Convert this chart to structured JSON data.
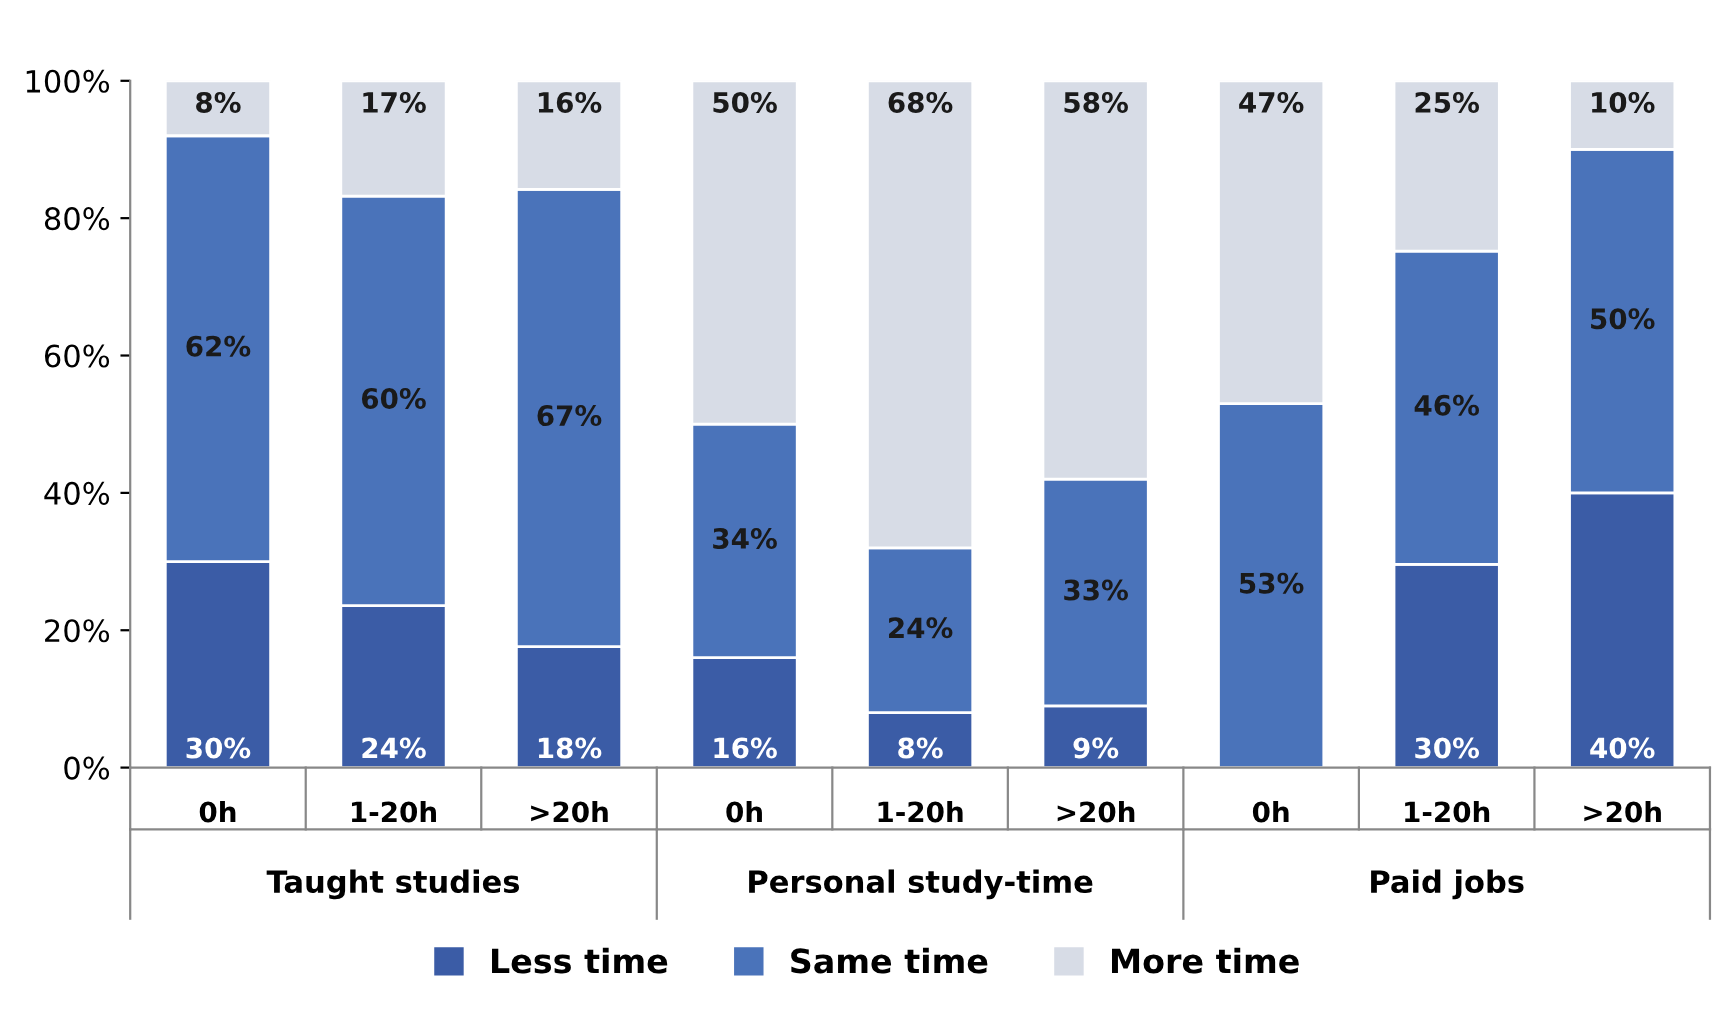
{
  "chart_data": {
    "type": "bar",
    "stacked": true,
    "categories": [
      "0h",
      "1-20h",
      ">20h",
      "0h",
      "1-20h",
      ">20h",
      "0h",
      "1-20h",
      ">20h"
    ],
    "series": [
      {
        "name": "Less time",
        "color": "#3b5ca6",
        "values": [
          30,
          23.6,
          17.6,
          16,
          8,
          9,
          0,
          29.6,
          40
        ],
        "value_labels": [
          "30%",
          "24%",
          "18%",
          "16%",
          "8%",
          "9%",
          null,
          "30%",
          "40%"
        ]
      },
      {
        "name": "Same time",
        "color": "#4a73ba",
        "values": [
          62,
          59.6,
          66.6,
          34,
          24,
          33,
          53,
          45.6,
          50
        ],
        "value_labels": [
          "62%",
          "60%",
          "67%",
          "34%",
          "24%",
          "33%",
          "53%",
          "46%",
          "50%"
        ]
      },
      {
        "name": "More time",
        "color": "#d7dce6",
        "values": [
          8,
          16.8,
          15.8,
          50,
          68,
          58,
          47,
          24.8,
          10
        ],
        "value_labels": [
          "8%",
          "17%",
          "16%",
          "50%",
          "68%",
          "58%",
          "47%",
          "25%",
          "10%"
        ]
      }
    ],
    "annotations": [
      "Taught studies",
      "Personal study-time",
      "Paid jobs"
    ],
    "ylim": [
      0,
      100
    ],
    "yticks": [
      {
        "value": 0,
        "label": "0%"
      },
      {
        "value": 20,
        "label": "20%"
      },
      {
        "value": 40,
        "label": "40%"
      },
      {
        "value": 60,
        "label": "60%"
      },
      {
        "value": 80,
        "label": "80%"
      },
      {
        "value": 100,
        "label": "100%"
      }
    ],
    "grid": false,
    "legend": "bottom"
  }
}
